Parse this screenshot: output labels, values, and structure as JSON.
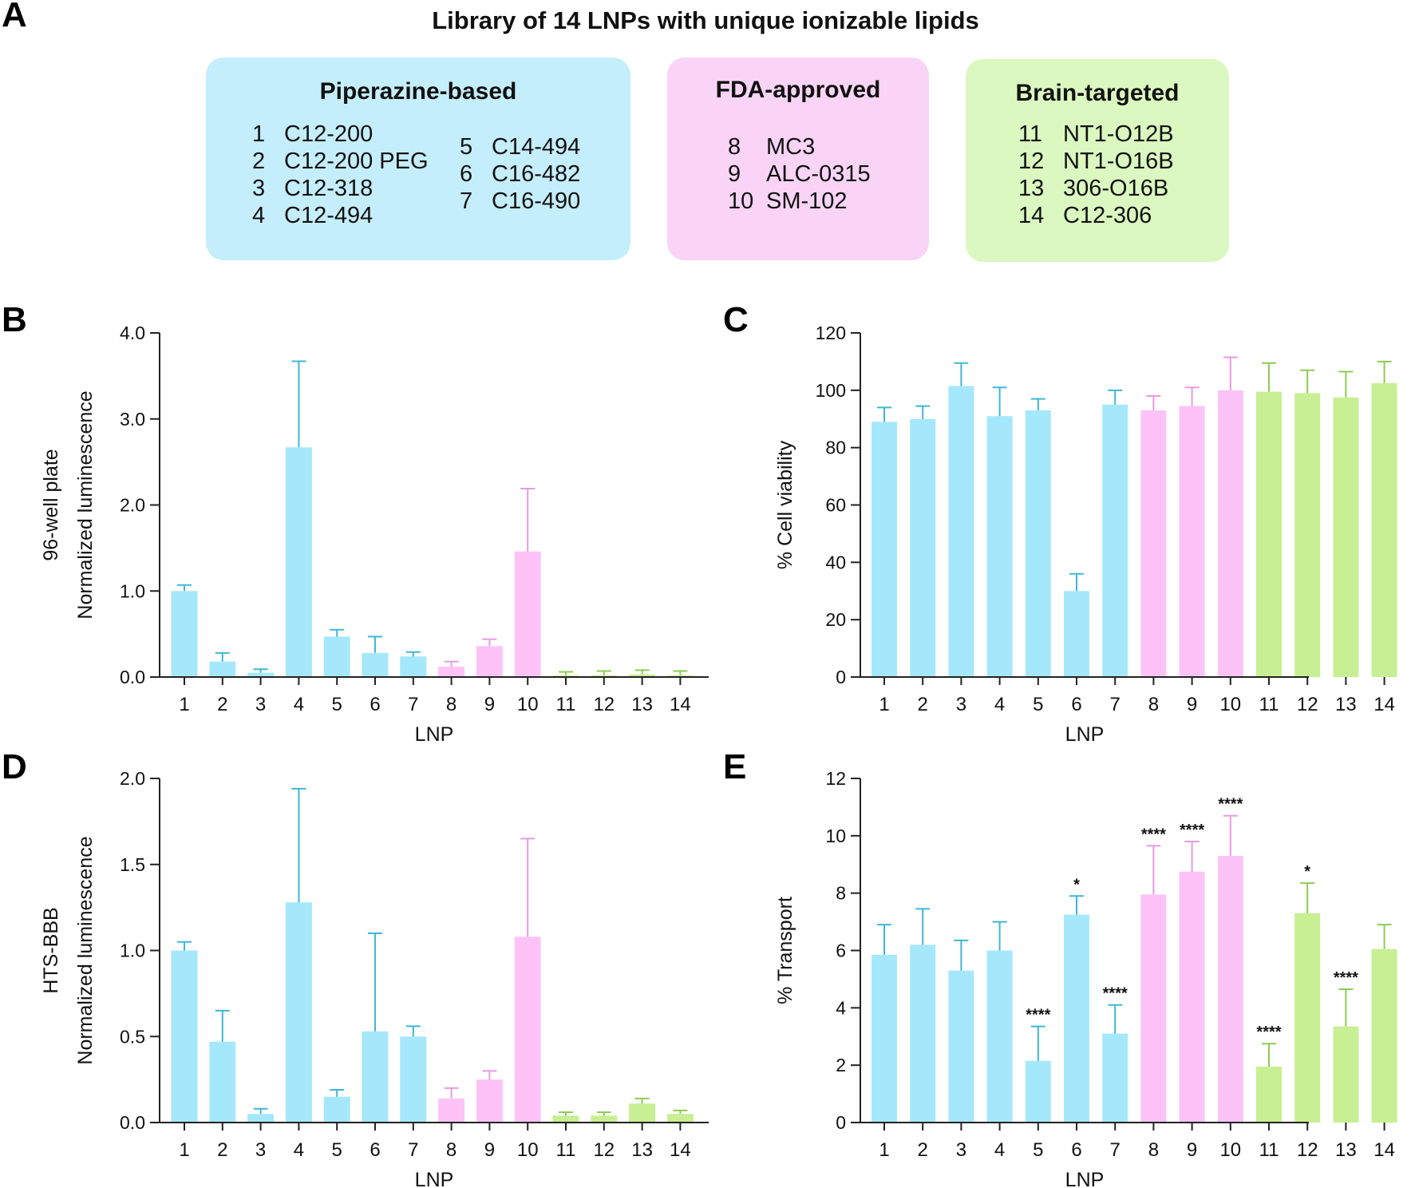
{
  "panels": {
    "a": "A",
    "b": "B",
    "c": "C",
    "d": "D",
    "e": "E"
  },
  "header": {
    "title": "Library of 14 LNPs with unique ionizable lipids"
  },
  "groups": [
    {
      "title": "Piperazine-based",
      "color": "#c5eefc",
      "items": [
        {
          "num": "1",
          "name": "C12-200"
        },
        {
          "num": "2",
          "name": "C12-200 PEG"
        },
        {
          "num": "3",
          "name": "C12-318"
        },
        {
          "num": "4",
          "name": "C12-494"
        },
        {
          "num": "5",
          "name": "C14-494"
        },
        {
          "num": "6",
          "name": "C16-482"
        },
        {
          "num": "7",
          "name": "C16-490"
        }
      ]
    },
    {
      "title": "FDA-approved",
      "color": "#f9d4f6",
      "items": [
        {
          "num": "8",
          "name": "MC3"
        },
        {
          "num": "9",
          "name": "ALC-0315"
        },
        {
          "num": "10",
          "name": "SM-102"
        }
      ]
    },
    {
      "title": "Brain-targeted",
      "color": "#daf8bf",
      "items": [
        {
          "num": "11",
          "name": "NT1-O12B"
        },
        {
          "num": "12",
          "name": "NT1-O16B"
        },
        {
          "num": "13",
          "name": "306-O16B"
        },
        {
          "num": "14",
          "name": "C12-306"
        }
      ]
    }
  ],
  "bar_colors": {
    "piperazine": "#a6e8fb",
    "piperazine_err": "#3fb7d6",
    "fda": "#fdc3f6",
    "fda_err": "#e79be0",
    "brain": "#c8ef93",
    "brain_err": "#8dcc55"
  },
  "chart_data": [
    {
      "id": "B",
      "type": "bar",
      "categories": [
        "1",
        "2",
        "3",
        "4",
        "5",
        "6",
        "7",
        "8",
        "9",
        "10",
        "11",
        "12",
        "13",
        "14"
      ],
      "values": [
        1.0,
        0.18,
        0.05,
        2.67,
        0.47,
        0.28,
        0.24,
        0.12,
        0.36,
        1.46,
        0.02,
        0.02,
        0.03,
        0.02
      ],
      "errors": [
        0.07,
        0.1,
        0.04,
        1.0,
        0.08,
        0.19,
        0.05,
        0.06,
        0.08,
        0.73,
        0.04,
        0.05,
        0.05,
        0.05
      ],
      "xlabel": "LNP",
      "ylabel": "Normalized luminescence",
      "ylabel2": "96-well plate",
      "ylim": [
        0,
        4.0
      ],
      "yticks": [
        "0.0",
        "1.0",
        "2.0",
        "3.0",
        "4.0"
      ],
      "grid": false
    },
    {
      "id": "C",
      "type": "bar",
      "categories": [
        "1",
        "2",
        "3",
        "4",
        "5",
        "6",
        "7",
        "8",
        "9",
        "10",
        "11",
        "12",
        "13",
        "14"
      ],
      "values": [
        89,
        90,
        101.5,
        91,
        93,
        30,
        95,
        93,
        94.5,
        100,
        99.5,
        99,
        97.5,
        102.5
      ],
      "errors": [
        5,
        4.5,
        8,
        10,
        4,
        6,
        5,
        5,
        6.5,
        11.5,
        10,
        8,
        9,
        7.5
      ],
      "xlabel": "LNP",
      "ylabel": "% Cell viability",
      "ylim": [
        0,
        120
      ],
      "yticks": [
        "0",
        "20",
        "40",
        "60",
        "80",
        "100",
        "120"
      ],
      "grid": false
    },
    {
      "id": "D",
      "type": "bar",
      "categories": [
        "1",
        "2",
        "3",
        "4",
        "5",
        "6",
        "7",
        "8",
        "9",
        "10",
        "11",
        "12",
        "13",
        "14"
      ],
      "values": [
        1.0,
        0.47,
        0.05,
        1.28,
        0.15,
        0.53,
        0.5,
        0.14,
        0.25,
        1.08,
        0.04,
        0.04,
        0.11,
        0.05
      ],
      "errors": [
        0.05,
        0.18,
        0.03,
        0.66,
        0.04,
        0.57,
        0.06,
        0.06,
        0.05,
        0.57,
        0.02,
        0.02,
        0.03,
        0.02
      ],
      "xlabel": "LNP",
      "ylabel": "Normalized luminescence",
      "ylabel2": "HTS-BBB",
      "ylim": [
        0,
        2.0
      ],
      "yticks": [
        "0.0",
        "0.5",
        "1.0",
        "1.5",
        "2.0"
      ],
      "grid": false
    },
    {
      "id": "E",
      "type": "bar",
      "categories": [
        "1",
        "2",
        "3",
        "4",
        "5",
        "6",
        "7",
        "8",
        "9",
        "10",
        "11",
        "12",
        "13",
        "14"
      ],
      "values": [
        5.85,
        6.2,
        5.3,
        6.0,
        2.15,
        7.25,
        3.1,
        7.95,
        8.75,
        9.3,
        1.95,
        7.3,
        3.35,
        6.05
      ],
      "errors": [
        1.05,
        1.25,
        1.05,
        1.0,
        1.2,
        0.65,
        1.0,
        1.7,
        1.05,
        1.4,
        0.8,
        1.05,
        1.3,
        0.85
      ],
      "significance": [
        "",
        "",
        "",
        "",
        "****",
        "*",
        "****",
        "****",
        "****",
        "****",
        "****",
        "*",
        "****",
        ""
      ],
      "xlabel": "LNP",
      "ylabel": "% Transport",
      "ylim": [
        0,
        12
      ],
      "yticks": [
        "0",
        "2",
        "4",
        "6",
        "8",
        "10",
        "12"
      ],
      "grid": false
    }
  ]
}
